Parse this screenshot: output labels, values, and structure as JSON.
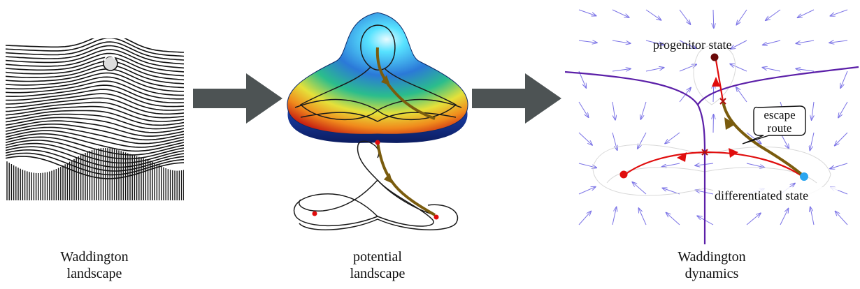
{
  "panels": {
    "left": {
      "caption_line1": "Waddington",
      "caption_line2": "landscape"
    },
    "middle": {
      "caption_line1": "potential",
      "caption_line2": "landscape"
    },
    "right": {
      "caption_line1": "Waddington",
      "caption_line2": "dynamics",
      "label_progenitor": "progenitor state",
      "label_differentiated": "differentiated state",
      "callout_line1": "escape",
      "callout_line2": "route"
    }
  },
  "colors": {
    "arrow_gray": "#4d5354",
    "trajectory": "#7a5c0e",
    "separatrix": "#5b1fa8",
    "flow_red": "#e00d0d",
    "progenitor_dot": "#6b0a0a",
    "differentiated_dot": "#2aa6f0",
    "vector_field": "#7b73e6"
  }
}
